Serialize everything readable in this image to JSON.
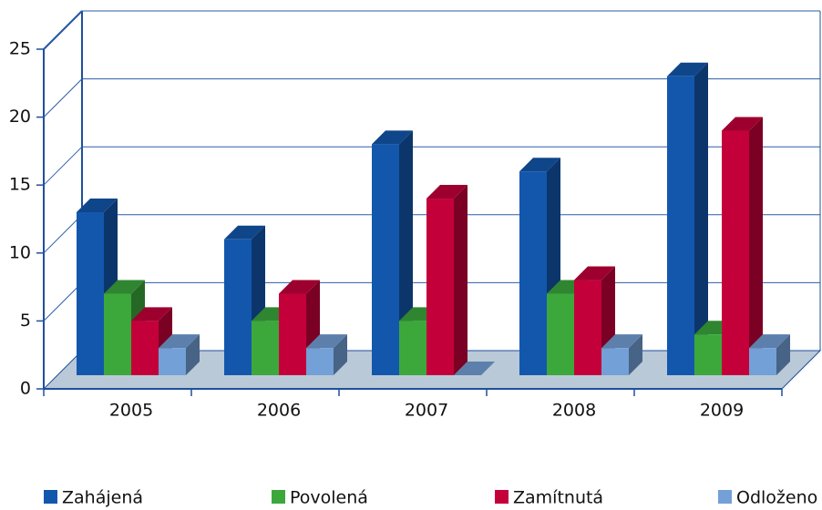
{
  "chart_data": {
    "type": "bar",
    "categories": [
      "2005",
      "2006",
      "2007",
      "2008",
      "2009"
    ],
    "series": [
      {
        "name": "Zahájená",
        "color": "#1357ad",
        "values": [
          12,
          10,
          17,
          15,
          22
        ]
      },
      {
        "name": "Povolená",
        "color": "#3ca83c",
        "values": [
          6,
          4,
          4,
          6,
          3
        ]
      },
      {
        "name": "Zamítnutá",
        "color": "#c4003a",
        "values": [
          4,
          6,
          13,
          7,
          18
        ]
      },
      {
        "name": "Odloženo",
        "color": "#73a0d6",
        "values": [
          2,
          2,
          0,
          2,
          2
        ]
      }
    ],
    "ylim": [
      0,
      25
    ],
    "yticks": [
      0,
      5,
      10,
      15,
      20,
      25
    ],
    "grid": true
  }
}
